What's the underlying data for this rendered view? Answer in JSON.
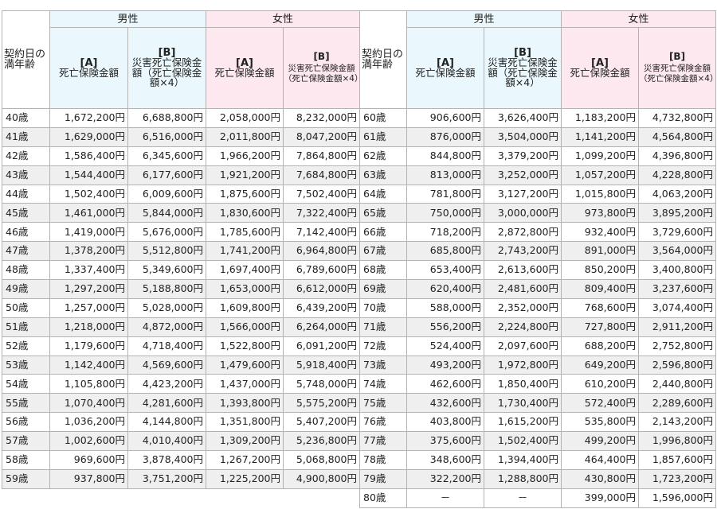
{
  "headers": {
    "age_label": "契約日の満年齢",
    "male": "男性",
    "female": "女性",
    "col_a_mark": "[A]",
    "col_a_label": "死亡保険金額",
    "col_b_mark": "[B]",
    "col_b_male_label": "災害死亡保険金額（死亡保険金額×4）",
    "col_b_female_label": "災害死亡保険金額（死亡保険金額×4）"
  },
  "left_rows": [
    {
      "age": "40歳",
      "ma": "1,672,200円",
      "mb": "6,688,800円",
      "fa": "2,058,000円",
      "fb": "8,232,000円"
    },
    {
      "age": "41歳",
      "ma": "1,629,000円",
      "mb": "6,516,000円",
      "fa": "2,011,800円",
      "fb": "8,047,200円"
    },
    {
      "age": "42歳",
      "ma": "1,586,400円",
      "mb": "6,345,600円",
      "fa": "1,966,200円",
      "fb": "7,864,800円"
    },
    {
      "age": "43歳",
      "ma": "1,544,400円",
      "mb": "6,177,600円",
      "fa": "1,921,200円",
      "fb": "7,684,800円"
    },
    {
      "age": "44歳",
      "ma": "1,502,400円",
      "mb": "6,009,600円",
      "fa": "1,875,600円",
      "fb": "7,502,400円"
    },
    {
      "age": "45歳",
      "ma": "1,461,000円",
      "mb": "5,844,000円",
      "fa": "1,830,600円",
      "fb": "7,322,400円"
    },
    {
      "age": "46歳",
      "ma": "1,419,000円",
      "mb": "5,676,000円",
      "fa": "1,785,600円",
      "fb": "7,142,400円"
    },
    {
      "age": "47歳",
      "ma": "1,378,200円",
      "mb": "5,512,800円",
      "fa": "1,741,200円",
      "fb": "6,964,800円"
    },
    {
      "age": "48歳",
      "ma": "1,337,400円",
      "mb": "5,349,600円",
      "fa": "1,697,400円",
      "fb": "6,789,600円"
    },
    {
      "age": "49歳",
      "ma": "1,297,200円",
      "mb": "5,188,800円",
      "fa": "1,653,000円",
      "fb": "6,612,000円"
    },
    {
      "age": "50歳",
      "ma": "1,257,000円",
      "mb": "5,028,000円",
      "fa": "1,609,800円",
      "fb": "6,439,200円"
    },
    {
      "age": "51歳",
      "ma": "1,218,000円",
      "mb": "4,872,000円",
      "fa": "1,566,000円",
      "fb": "6,264,000円"
    },
    {
      "age": "52歳",
      "ma": "1,179,600円",
      "mb": "4,718,400円",
      "fa": "1,522,800円",
      "fb": "6,091,200円"
    },
    {
      "age": "53歳",
      "ma": "1,142,400円",
      "mb": "4,569,600円",
      "fa": "1,479,600円",
      "fb": "5,918,400円"
    },
    {
      "age": "54歳",
      "ma": "1,105,800円",
      "mb": "4,423,200円",
      "fa": "1,437,000円",
      "fb": "5,748,000円"
    },
    {
      "age": "55歳",
      "ma": "1,070,400円",
      "mb": "4,281,600円",
      "fa": "1,393,800円",
      "fb": "5,575,200円"
    },
    {
      "age": "56歳",
      "ma": "1,036,200円",
      "mb": "4,144,800円",
      "fa": "1,351,800円",
      "fb": "5,407,200円"
    },
    {
      "age": "57歳",
      "ma": "1,002,600円",
      "mb": "4,010,400円",
      "fa": "1,309,200円",
      "fb": "5,236,800円"
    },
    {
      "age": "58歳",
      "ma": "969,600円",
      "mb": "3,878,400円",
      "fa": "1,267,200円",
      "fb": "5,068,800円"
    },
    {
      "age": "59歳",
      "ma": "937,800円",
      "mb": "3,751,200円",
      "fa": "1,225,200円",
      "fb": "4,900,800円"
    }
  ],
  "right_rows": [
    {
      "age": "60歳",
      "ma": "906,600円",
      "mb": "3,626,400円",
      "fa": "1,183,200円",
      "fb": "4,732,800円"
    },
    {
      "age": "61歳",
      "ma": "876,000円",
      "mb": "3,504,000円",
      "fa": "1,141,200円",
      "fb": "4,564,800円"
    },
    {
      "age": "62歳",
      "ma": "844,800円",
      "mb": "3,379,200円",
      "fa": "1,099,200円",
      "fb": "4,396,800円"
    },
    {
      "age": "63歳",
      "ma": "813,000円",
      "mb": "3,252,000円",
      "fa": "1,057,200円",
      "fb": "4,228,800円"
    },
    {
      "age": "64歳",
      "ma": "781,800円",
      "mb": "3,127,200円",
      "fa": "1,015,800円",
      "fb": "4,063,200円"
    },
    {
      "age": "65歳",
      "ma": "750,000円",
      "mb": "3,000,000円",
      "fa": "973,800円",
      "fb": "3,895,200円"
    },
    {
      "age": "66歳",
      "ma": "718,200円",
      "mb": "2,872,800円",
      "fa": "932,400円",
      "fb": "3,729,600円"
    },
    {
      "age": "67歳",
      "ma": "685,800円",
      "mb": "2,743,200円",
      "fa": "891,000円",
      "fb": "3,564,000円"
    },
    {
      "age": "68歳",
      "ma": "653,400円",
      "mb": "2,613,600円",
      "fa": "850,200円",
      "fb": "3,400,800円"
    },
    {
      "age": "69歳",
      "ma": "620,400円",
      "mb": "2,481,600円",
      "fa": "809,400円",
      "fb": "3,237,600円"
    },
    {
      "age": "70歳",
      "ma": "588,000円",
      "mb": "2,352,000円",
      "fa": "768,600円",
      "fb": "3,074,400円"
    },
    {
      "age": "71歳",
      "ma": "556,200円",
      "mb": "2,224,800円",
      "fa": "727,800円",
      "fb": "2,911,200円"
    },
    {
      "age": "72歳",
      "ma": "524,400円",
      "mb": "2,097,600円",
      "fa": "688,200円",
      "fb": "2,752,800円"
    },
    {
      "age": "73歳",
      "ma": "493,200円",
      "mb": "1,972,800円",
      "fa": "649,200円",
      "fb": "2,596,800円"
    },
    {
      "age": "74歳",
      "ma": "462,600円",
      "mb": "1,850,400円",
      "fa": "610,200円",
      "fb": "2,440,800円"
    },
    {
      "age": "75歳",
      "ma": "432,600円",
      "mb": "1,730,400円",
      "fa": "572,400円",
      "fb": "2,289,600円"
    },
    {
      "age": "76歳",
      "ma": "403,800円",
      "mb": "1,615,200円",
      "fa": "535,800円",
      "fb": "2,143,200円"
    },
    {
      "age": "77歳",
      "ma": "375,600円",
      "mb": "1,502,400円",
      "fa": "499,200円",
      "fb": "1,996,800円"
    },
    {
      "age": "78歳",
      "ma": "348,600円",
      "mb": "1,394,400円",
      "fa": "464,400円",
      "fb": "1,857,600円"
    },
    {
      "age": "79歳",
      "ma": "322,200円",
      "mb": "1,288,800円",
      "fa": "430,800円",
      "fb": "1,723,200円"
    },
    {
      "age": "80歳",
      "ma": "－",
      "mb": "－",
      "fa": "399,000円",
      "fb": "1,596,000円"
    }
  ]
}
